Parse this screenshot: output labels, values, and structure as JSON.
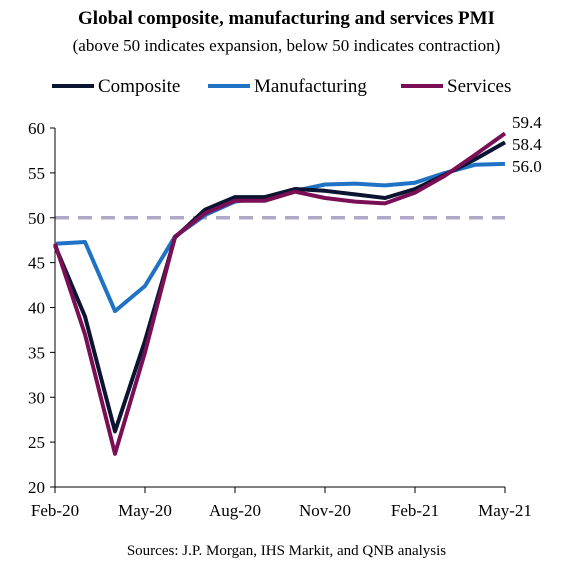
{
  "chart_data": {
    "type": "line",
    "title": "Global composite, manufacturing and services PMI",
    "subtitle": "(above 50 indicates expansion, below 50 indicates contraction)",
    "source": "Sources: J.P. Morgan, IHS Markit, and QNB analysis",
    "x": [
      "Feb-20",
      "Mar-20",
      "Apr-20",
      "May-20",
      "Jun-20",
      "Jul-20",
      "Aug-20",
      "Sep-20",
      "Oct-20",
      "Nov-20",
      "Dec-20",
      "Jan-21",
      "Feb-21",
      "Mar-21",
      "Apr-21",
      "May-21"
    ],
    "x_tick_labels": [
      "Feb-20",
      "May-20",
      "Aug-20",
      "Nov-20",
      "Feb-21",
      "May-21"
    ],
    "ylim": [
      20,
      60
    ],
    "y_ticks": [
      20,
      25,
      30,
      35,
      40,
      45,
      50,
      55,
      60
    ],
    "reference_line": {
      "y": 50,
      "color": "#b0a8c6",
      "style": "dashed"
    },
    "legend_position": "top",
    "series": [
      {
        "name": "Composite",
        "color": "#0b1532",
        "values": [
          46.9,
          39.0,
          26.2,
          36.3,
          47.8,
          50.9,
          52.3,
          52.3,
          53.2,
          53.0,
          52.6,
          52.2,
          53.2,
          54.8,
          56.5,
          58.4
        ],
        "end_label": "58.4"
      },
      {
        "name": "Manufacturing",
        "color": "#1f72c4",
        "values": [
          47.1,
          47.3,
          39.6,
          42.4,
          47.9,
          50.3,
          51.8,
          52.3,
          53.0,
          53.7,
          53.8,
          53.6,
          53.9,
          55.0,
          55.9,
          56.0
        ],
        "end_label": "56.0"
      },
      {
        "name": "Services",
        "color": "#7a0f55",
        "values": [
          47.1,
          37.0,
          23.7,
          35.0,
          47.9,
          50.5,
          51.9,
          51.9,
          52.9,
          52.2,
          51.8,
          51.6,
          52.8,
          54.7,
          57.0,
          59.4
        ],
        "end_label": "59.4"
      }
    ]
  }
}
